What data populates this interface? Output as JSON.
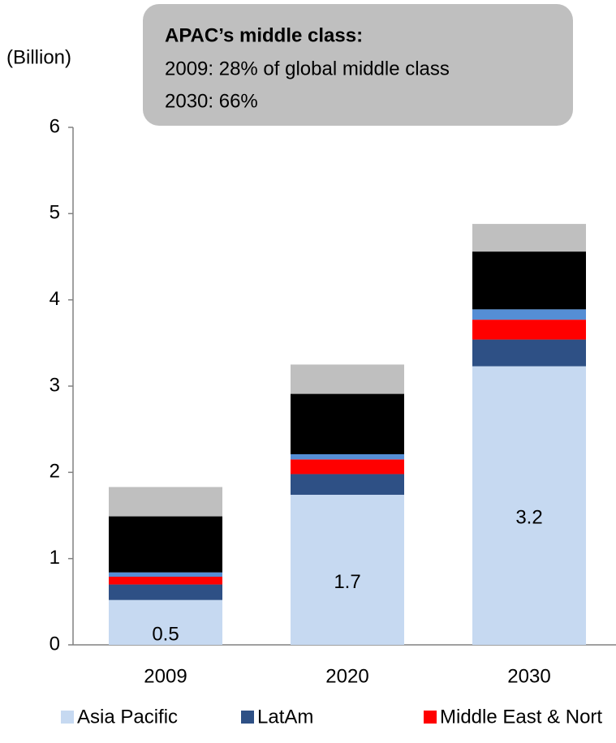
{
  "chart_data": {
    "type": "stacked_bar",
    "y_label": "(Billion)",
    "annotation": {
      "title": "APAC’s middle class:",
      "lines": [
        "2009: 28% of global middle class",
        "2030: 66%"
      ]
    },
    "categories": [
      "2009",
      "2020",
      "2030"
    ],
    "series": [
      {
        "name": "Asia Pacific",
        "color": "#c6d9f1",
        "values": [
          0.52,
          1.74,
          3.23
        ],
        "value_labels": [
          "0.5",
          "1.7",
          "3.2"
        ]
      },
      {
        "name": "LatAm",
        "color": "#2e5085",
        "values": [
          0.18,
          0.24,
          0.31
        ]
      },
      {
        "name": "Middle East & Nort",
        "color": "#ff0000",
        "values": [
          0.09,
          0.17,
          0.23
        ]
      },
      {
        "color": "#558ed5",
        "values": [
          0.05,
          0.06,
          0.12
        ]
      },
      {
        "color": "#000000",
        "values": [
          0.65,
          0.7,
          0.67
        ]
      },
      {
        "color": "#bfbfbf",
        "values": [
          0.34,
          0.34,
          0.32
        ]
      }
    ],
    "ylim": [
      0,
      6
    ],
    "yticks": [
      0,
      1,
      2,
      3,
      4,
      5,
      6
    ],
    "legend": "bottom"
  }
}
